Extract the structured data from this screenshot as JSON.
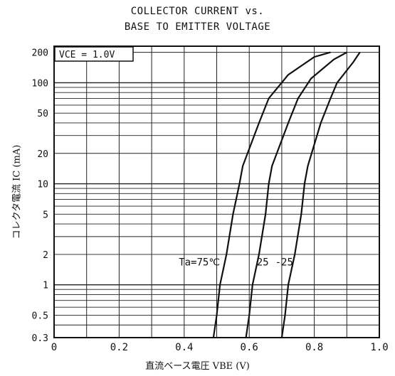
{
  "chart_data": {
    "type": "line",
    "title": "COLLECTOR CURRENT vs.",
    "subtitle": "BASE TO EMITTER VOLTAGE",
    "xlabel": "直流ベース電圧  VBE (V)",
    "ylabel": "コレクタ電流  IC (mA)",
    "xlim": [
      0,
      1.0
    ],
    "ylim": [
      0.3,
      200
    ],
    "yscale": "log",
    "grid": true,
    "x_ticks": [
      "0",
      "0.2",
      "0.4",
      "0.6",
      "0.8",
      "1.0"
    ],
    "y_ticks": [
      {
        "value": 200,
        "label": "200"
      },
      {
        "value": 100,
        "label": "100"
      },
      {
        "value": 50,
        "label": "50"
      },
      {
        "value": 20,
        "label": "20"
      },
      {
        "value": 10,
        "label": "10"
      },
      {
        "value": 5,
        "label": "5"
      },
      {
        "value": 2,
        "label": "2"
      },
      {
        "value": 1,
        "label": "1"
      },
      {
        "value": 0.5,
        "label": "0.5"
      },
      {
        "value": 0.3,
        "label": "0.3"
      }
    ],
    "condition_label": "VCE = 1.0V",
    "series": [
      {
        "name": "Ta=75°C",
        "label": "Ta=75℃",
        "points": [
          [
            0.49,
            0.3
          ],
          [
            0.5,
            0.5
          ],
          [
            0.51,
            1
          ],
          [
            0.53,
            2
          ],
          [
            0.55,
            5
          ],
          [
            0.57,
            10
          ],
          [
            0.58,
            15
          ],
          [
            0.63,
            40
          ],
          [
            0.66,
            70
          ],
          [
            0.72,
            120
          ],
          [
            0.8,
            180
          ],
          [
            0.85,
            200
          ]
        ]
      },
      {
        "name": "Ta=25°C",
        "label": "25",
        "points": [
          [
            0.59,
            0.3
          ],
          [
            0.6,
            0.5
          ],
          [
            0.61,
            1
          ],
          [
            0.63,
            2
          ],
          [
            0.65,
            5
          ],
          [
            0.66,
            10
          ],
          [
            0.67,
            15
          ],
          [
            0.72,
            40
          ],
          [
            0.75,
            70
          ],
          [
            0.79,
            110
          ],
          [
            0.86,
            170
          ],
          [
            0.9,
            200
          ]
        ]
      },
      {
        "name": "Ta=-25°C",
        "label": "-25",
        "points": [
          [
            0.7,
            0.3
          ],
          [
            0.71,
            0.5
          ],
          [
            0.72,
            1
          ],
          [
            0.74,
            2
          ],
          [
            0.76,
            5
          ],
          [
            0.77,
            10
          ],
          [
            0.78,
            15
          ],
          [
            0.82,
            40
          ],
          [
            0.85,
            70
          ],
          [
            0.87,
            100
          ],
          [
            0.92,
            160
          ],
          [
            0.94,
            200
          ]
        ]
      }
    ]
  }
}
